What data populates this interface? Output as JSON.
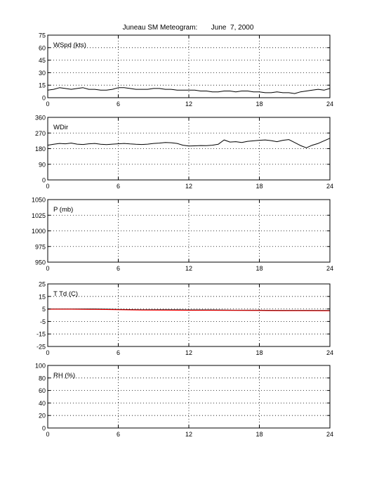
{
  "title": "Juneau SM Meteogram:       June  7, 2000",
  "chart_data": [
    {
      "type": "line",
      "label": "WSpd (kts)",
      "xlim": [
        0,
        24
      ],
      "xticks": [
        0,
        6,
        12,
        18,
        24
      ],
      "ylim": [
        0,
        75
      ],
      "yticks": [
        0,
        15,
        30,
        45,
        60,
        75
      ],
      "grid": true,
      "series": [
        {
          "color": "#000000",
          "x": [
            0,
            0.5,
            1,
            1.5,
            2,
            2.5,
            3,
            3.5,
            4,
            4.5,
            5,
            5.5,
            6,
            6.5,
            7,
            7.5,
            8,
            8.5,
            9,
            9.5,
            10,
            10.5,
            11,
            11.5,
            12,
            12.5,
            13,
            13.5,
            14,
            14.5,
            15,
            15.5,
            16,
            16.5,
            17,
            17.5,
            18,
            18.5,
            19,
            19.5,
            20,
            20.5,
            21,
            21.5,
            22,
            22.5,
            23,
            23.5,
            24
          ],
          "y": [
            9,
            10,
            12,
            11,
            10,
            11,
            12,
            10,
            10,
            9,
            9,
            10,
            12,
            12,
            11,
            10,
            10,
            10,
            11,
            11,
            10,
            10,
            9,
            9,
            9,
            9,
            8,
            8,
            7,
            7,
            8,
            8,
            7,
            8,
            8,
            7,
            7,
            6,
            6,
            7,
            6,
            6,
            5,
            7,
            8,
            9,
            10,
            9,
            11
          ]
        }
      ]
    },
    {
      "type": "line",
      "label": "WDir",
      "xlim": [
        0,
        24
      ],
      "xticks": [
        0,
        6,
        12,
        18,
        24
      ],
      "ylim": [
        0,
        360
      ],
      "yticks": [
        0,
        90,
        180,
        270,
        360
      ],
      "grid": true,
      "series": [
        {
          "color": "#000000",
          "x": [
            0,
            0.5,
            1,
            1.5,
            2,
            2.5,
            3,
            3.5,
            4,
            4.5,
            5,
            5.5,
            6,
            6.5,
            7,
            7.5,
            8,
            8.5,
            9,
            9.5,
            10,
            10.5,
            11,
            11.5,
            12,
            12.5,
            13,
            13.5,
            14,
            14.5,
            15,
            15.5,
            16,
            16.5,
            17,
            17.5,
            18,
            18.5,
            19,
            19.5,
            20,
            20.5,
            21,
            21.5,
            22,
            22.5,
            23,
            23.5,
            24
          ],
          "y": [
            200,
            205,
            210,
            208,
            212,
            206,
            204,
            208,
            210,
            205,
            203,
            206,
            208,
            210,
            207,
            205,
            204,
            206,
            210,
            212,
            215,
            214,
            210,
            200,
            195,
            196,
            198,
            197,
            200,
            205,
            230,
            218,
            220,
            215,
            222,
            225,
            228,
            230,
            226,
            220,
            228,
            232,
            215,
            198,
            185,
            200,
            210,
            225,
            240
          ]
        }
      ]
    },
    {
      "type": "line",
      "label": "P (mb)",
      "xlim": [
        0,
        24
      ],
      "xticks": [
        0,
        6,
        12,
        18,
        24
      ],
      "ylim": [
        950,
        1050
      ],
      "yticks": [
        950,
        975,
        1000,
        1025,
        1050
      ],
      "grid": true,
      "series": []
    },
    {
      "type": "line",
      "label": "T Td (C)",
      "xlim": [
        0,
        24
      ],
      "xticks": [
        0,
        6,
        12,
        18,
        24
      ],
      "ylim": [
        -25,
        25
      ],
      "yticks": [
        -25,
        -15,
        -5,
        5,
        15,
        25
      ],
      "grid": true,
      "series": [
        {
          "color": "#000000",
          "x": [
            0,
            2,
            4,
            6,
            8,
            10,
            12,
            14,
            16,
            18,
            20,
            22,
            24
          ],
          "y": [
            5,
            5,
            5,
            4.6,
            4.4,
            4.3,
            4.2,
            4.2,
            4,
            4,
            3.9,
            3.9,
            3.8
          ]
        },
        {
          "color": "#ff0000",
          "x": [
            0,
            2,
            4,
            6,
            8,
            10,
            12,
            14,
            16,
            18,
            20,
            22,
            24
          ],
          "y": [
            4.8,
            4.8,
            4.6,
            4.3,
            4.1,
            4,
            3.9,
            3.9,
            3.8,
            3.7,
            3.6,
            3.6,
            3.5
          ]
        }
      ]
    },
    {
      "type": "line",
      "label": "RH (%)",
      "xlim": [
        0,
        24
      ],
      "xticks": [
        0,
        6,
        12,
        18,
        24
      ],
      "ylim": [
        0,
        100
      ],
      "yticks": [
        0,
        20,
        40,
        60,
        80,
        100
      ],
      "grid": true,
      "series": []
    }
  ]
}
